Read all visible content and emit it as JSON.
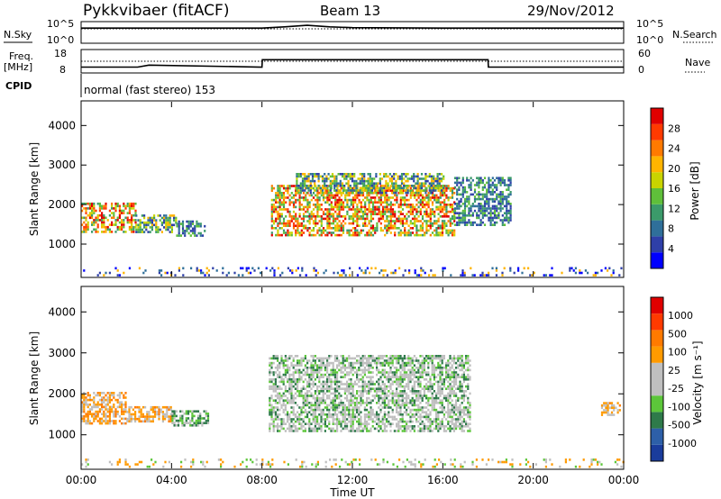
{
  "header": {
    "station": "Pykkvibaer (fitACF)",
    "beam": "Beam 13",
    "date": "29/Nov/2012"
  },
  "panels": {
    "nsky_label": "N.Sky",
    "nsky_ticks": [
      "10^5",
      "10^0"
    ],
    "nsearch_label": "N.Search",
    "nsearch_ticks": [
      "10^5",
      "10^0"
    ],
    "freq_label_top": "Freq.",
    "freq_label_unit": "[MHz]",
    "freq_ticks": [
      "18",
      "8"
    ],
    "nave_label": "Nave",
    "nave_ticks": [
      "60",
      "0"
    ],
    "cpid_label": "CPID",
    "cpid_text": "normal (fast stereo) 153"
  },
  "chart_data": [
    {
      "type": "line",
      "name": "nsky-nsearch",
      "series": [
        {
          "name": "N.Sky",
          "x": [
            "00:00",
            "04:00",
            "08:00",
            "09:00",
            "10:00",
            "11:00",
            "12:00",
            "16:00",
            "20:00",
            "24:00"
          ],
          "y": [
            3.6,
            3.6,
            3.6,
            3.9,
            4.3,
            3.9,
            3.7,
            3.6,
            3.6,
            3.6
          ]
        },
        {
          "name": "N.Search",
          "x": [
            "00:00",
            "24:00"
          ],
          "y": [
            3.4,
            3.4
          ]
        }
      ],
      "ylim": [
        0,
        5
      ]
    },
    {
      "type": "line",
      "name": "freq-nave",
      "series": [
        {
          "name": "Freq.",
          "x": [
            "00:00",
            "02:30",
            "03:00",
            "08:00",
            "08:01",
            "18:00",
            "18:01",
            "24:00"
          ],
          "y": [
            10.3,
            10.3,
            11.2,
            10.3,
            13.7,
            13.7,
            10.3,
            10.3
          ]
        },
        {
          "name": "Nave",
          "x": [
            "00:00",
            "24:00"
          ],
          "y": [
            30,
            30
          ]
        }
      ],
      "freq_ylim": [
        8,
        18
      ],
      "nave_ylim": [
        0,
        60
      ]
    },
    {
      "type": "heatmap",
      "name": "power",
      "ylabel": "Slant Range [km]",
      "yticks": [
        "4000",
        "3000",
        "2000",
        "1000"
      ],
      "ylim": [
        180,
        4600
      ],
      "xlim": [
        0,
        24
      ],
      "colorbar_label": "Power [dB]",
      "colorbar_ticks": [
        "28",
        "24",
        "20",
        "16",
        "12",
        "8",
        "4"
      ],
      "colorbar_colors": [
        "#0000ff",
        "#2e3fa8",
        "#2f6f9a",
        "#3b9a6a",
        "#5fbf3a",
        "#c9d400",
        "#ffb400",
        "#ff7a00",
        "#ff3a00",
        "#e00000"
      ],
      "regions": [
        {
          "t0": 0.0,
          "t1": 2.4,
          "r0": 1300,
          "r1": 2050,
          "level": "high"
        },
        {
          "t0": 2.4,
          "t1": 4.2,
          "r0": 1300,
          "r1": 1750,
          "level": "mid"
        },
        {
          "t0": 4.2,
          "t1": 5.5,
          "r0": 1200,
          "r1": 1600,
          "level": "low"
        },
        {
          "t0": 8.4,
          "t1": 16.5,
          "r0": 1200,
          "r1": 2500,
          "level": "high"
        },
        {
          "t0": 9.5,
          "t1": 16.0,
          "r0": 2300,
          "r1": 2800,
          "level": "mid"
        },
        {
          "t0": 16.5,
          "t1": 19.0,
          "r0": 1500,
          "r1": 2700,
          "level": "low"
        },
        {
          "t0": 0.0,
          "t1": 24.0,
          "r0": 200,
          "r1": 420,
          "level": "noise"
        }
      ]
    },
    {
      "type": "heatmap",
      "name": "velocity",
      "ylabel": "Slant Range [km]",
      "xlabel": "Time UT",
      "yticks": [
        "4000",
        "3000",
        "2000",
        "1000"
      ],
      "ylim": [
        180,
        4600
      ],
      "xlim": [
        0,
        24
      ],
      "xticks": [
        "00:00",
        "04:00",
        "08:00",
        "12:00",
        "16:00",
        "20:00",
        "00:00"
      ],
      "colorbar_label": "Velocity [m s⁻¹]",
      "colorbar_ticks": [
        "1000",
        "500",
        "100",
        "25",
        "-25",
        "-100",
        "-500",
        "-1000"
      ],
      "colorbar_colors": [
        "#1a3c9c",
        "#2d5fa8",
        "#2e7a4a",
        "#5cc63a",
        "#bfbfbf",
        "#bfbfbf",
        "#ff9a00",
        "#ff7a00",
        "#ff3a00",
        "#e00000"
      ],
      "regions": [
        {
          "t0": 0.0,
          "t1": 2.0,
          "r0": 1250,
          "r1": 2050,
          "level": "away"
        },
        {
          "t0": 2.0,
          "t1": 4.0,
          "r0": 1300,
          "r1": 1700,
          "level": "away"
        },
        {
          "t0": 4.0,
          "t1": 5.6,
          "r0": 1200,
          "r1": 1600,
          "level": "toward"
        },
        {
          "t0": 8.3,
          "t1": 17.2,
          "r0": 1100,
          "r1": 2950,
          "level": "neutral"
        },
        {
          "t0": 23.0,
          "t1": 23.8,
          "r0": 1500,
          "r1": 1800,
          "level": "away"
        },
        {
          "t0": 0.0,
          "t1": 24.0,
          "r0": 200,
          "r1": 420,
          "level": "noise"
        }
      ]
    }
  ]
}
